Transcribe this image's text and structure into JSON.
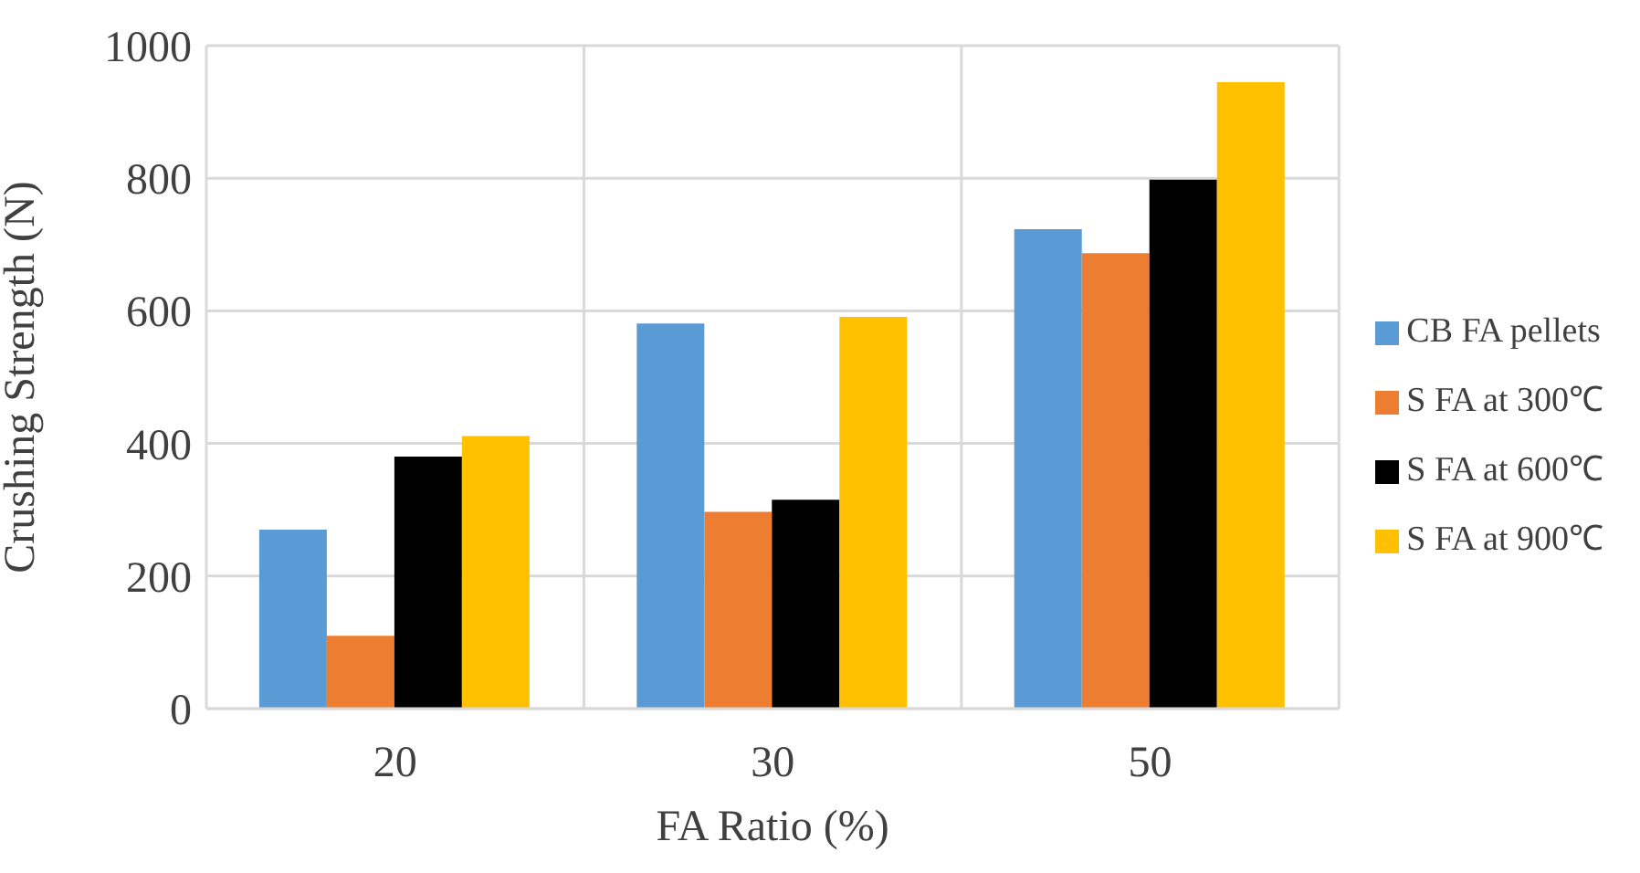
{
  "chart_data": {
    "type": "bar",
    "xlabel": "FA Ratio (%)",
    "ylabel": "Crushing Strength (N)",
    "categories": [
      "20",
      "30",
      "50"
    ],
    "series": [
      {
        "name": "CB FA pellets",
        "color": "#5b9bd5",
        "values": [
          270,
          581,
          723
        ]
      },
      {
        "name": "S FA at 300℃",
        "color": "#ed7d31",
        "values": [
          110,
          297,
          687
        ]
      },
      {
        "name": "S FA at 600℃",
        "color": "#000000",
        "values": [
          380,
          315,
          798
        ]
      },
      {
        "name": "S FA at 900℃",
        "color": "#ffc000",
        "values": [
          411,
          591,
          945
        ]
      }
    ],
    "ylim": [
      0,
      1000
    ],
    "yticks": [
      0,
      200,
      400,
      600,
      800,
      1000
    ],
    "grid": true,
    "legend": "right"
  }
}
